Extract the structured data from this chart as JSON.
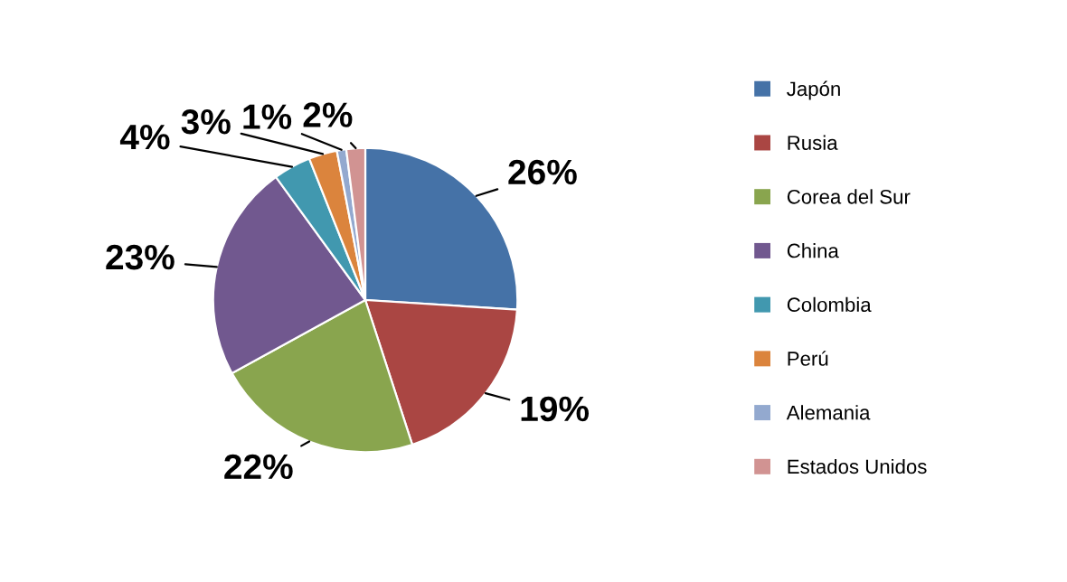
{
  "chart_data": {
    "type": "pie",
    "categories": [
      "Japón",
      "Rusia",
      "Corea del Sur",
      "China",
      "Colombia",
      "Perú",
      "Alemania",
      "Estados Unidos"
    ],
    "values": [
      26,
      19,
      22,
      23,
      4,
      3,
      1,
      2
    ],
    "colors": [
      "#4572a7",
      "#aa4643",
      "#89a54e",
      "#71588f",
      "#4198af",
      "#db843d",
      "#93a9cf",
      "#d19392"
    ],
    "value_labels": [
      "26%",
      "19%",
      "22%",
      "23%",
      "4%",
      "3%",
      "1%",
      "2%"
    ],
    "legend": "right"
  }
}
